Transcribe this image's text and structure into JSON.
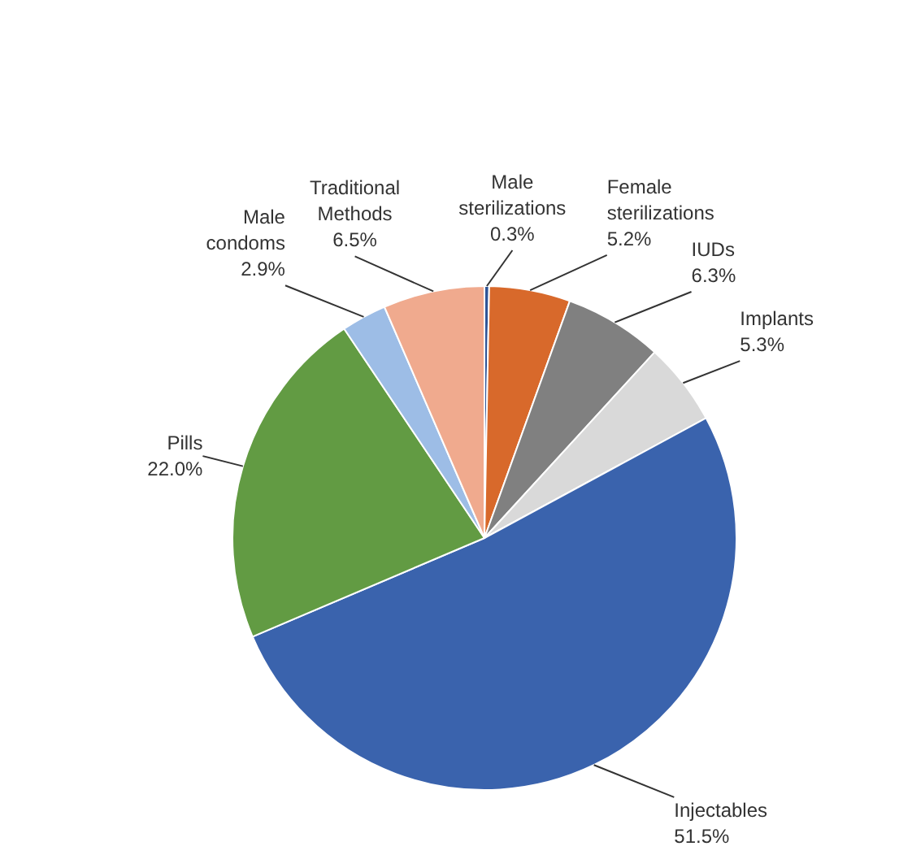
{
  "chart_data": {
    "type": "pie",
    "categories": [
      "Male sterilizations",
      "Female sterilizations",
      "IUDs",
      "Implants",
      "Injectables",
      "Pills",
      "Male condoms",
      "Traditional Methods"
    ],
    "values": [
      0.3,
      5.2,
      6.3,
      5.3,
      51.5,
      22.0,
      2.9,
      6.5
    ],
    "value_labels": [
      "0.3%",
      "5.2%",
      "6.3%",
      "5.3%",
      "51.5%",
      "22.0%",
      "2.9%",
      "6.5%"
    ],
    "colors": [
      "#2f5597",
      "#d8692b",
      "#808080",
      "#d9d9d9",
      "#3a63ad",
      "#629b43",
      "#9dbde6",
      "#f0aa8e"
    ],
    "legend": false
  }
}
